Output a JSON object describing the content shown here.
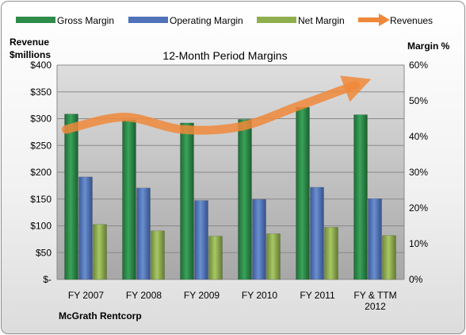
{
  "chart_data": {
    "type": "bar",
    "title": "12-Month Period Margins",
    "company": "McGrath Rentcorp",
    "y_left_label": [
      "Revenue",
      "$millions"
    ],
    "y_right_label": "Margin %",
    "y_left_ticks": [
      "$400",
      "$350",
      "$300",
      "$250",
      "$200",
      "$150",
      "$100",
      "$50",
      "$-"
    ],
    "y_right_ticks": [
      "60%",
      "50%",
      "40%",
      "30%",
      "20%",
      "10%",
      "0%"
    ],
    "y_left_range": [
      0,
      400
    ],
    "y_right_range": [
      0,
      60
    ],
    "grid": true,
    "legend_position": "top",
    "categories": [
      [
        "FY 2007"
      ],
      [
        "FY 2008"
      ],
      [
        "FY 2009"
      ],
      [
        "FY 2010"
      ],
      [
        "FY 2011"
      ],
      [
        "FY & TTM",
        "2012"
      ]
    ],
    "series": [
      {
        "name": "Gross Margin",
        "axis": "right",
        "type": "bar",
        "color": "#2e8b4a",
        "values": [
          46.3,
          44.6,
          43.8,
          44.8,
          48.2,
          46.1
        ]
      },
      {
        "name": "Operating Margin",
        "axis": "right",
        "type": "bar",
        "color": "#4f72b8",
        "values": [
          28.7,
          25.6,
          22.1,
          22.4,
          25.8,
          22.6
        ]
      },
      {
        "name": "Net Margin",
        "axis": "right",
        "type": "bar",
        "color": "#8fae4d",
        "values": [
          15.4,
          13.6,
          12.1,
          12.8,
          14.6,
          12.3
        ]
      },
      {
        "name": "Revenues",
        "axis": "left",
        "type": "line",
        "color": "#f0883a",
        "values": [
          280,
          303,
          280,
          285,
          323,
          363
        ]
      }
    ]
  }
}
